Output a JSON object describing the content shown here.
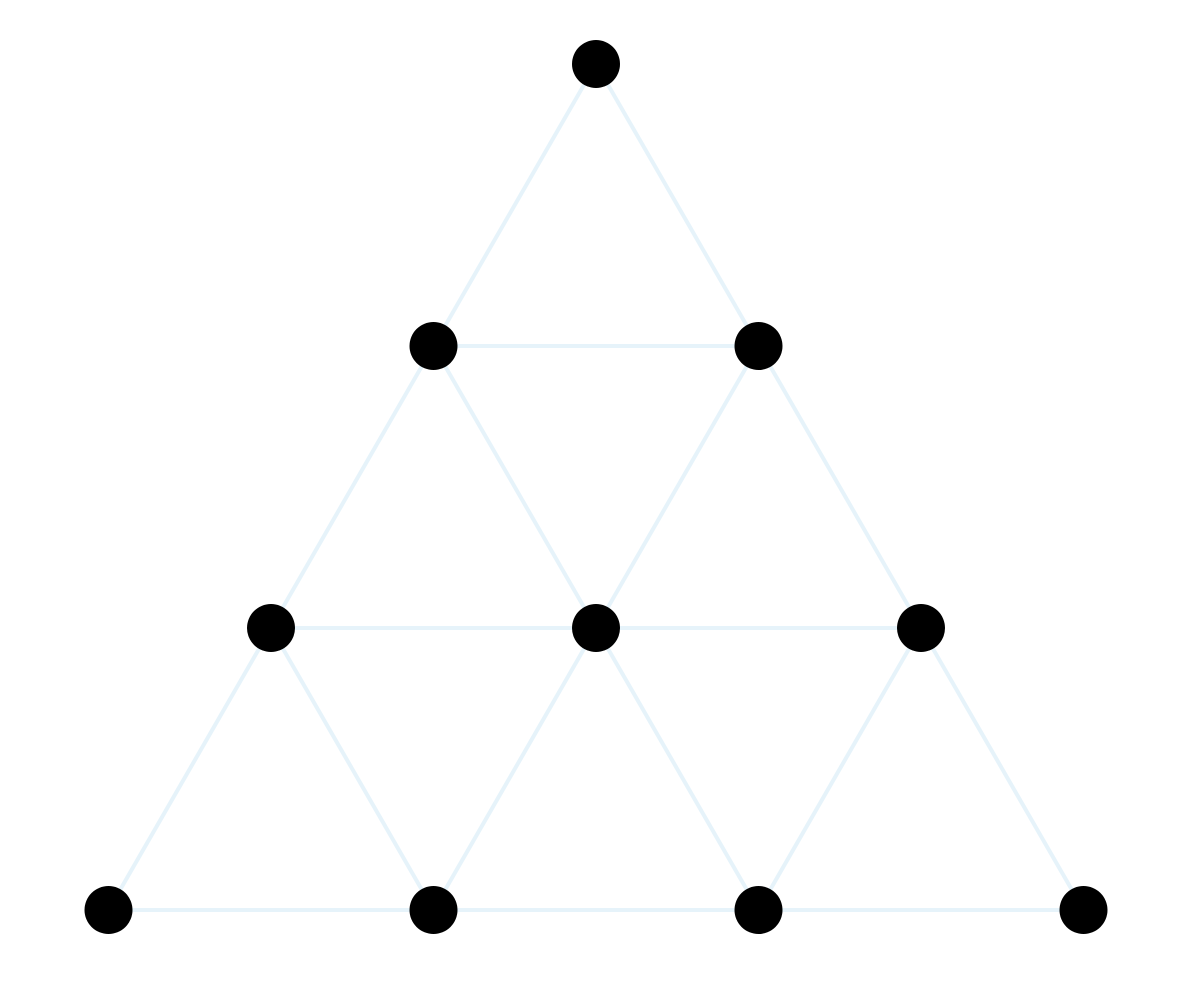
{
  "diagram": {
    "type": "triangular-grid-graph",
    "rows": 4,
    "node_count": 10,
    "edge_count": 18,
    "colors": {
      "background": "#ffffff",
      "node": "#000000",
      "edge": "#e6f3fa"
    },
    "nodes": [
      {
        "id": "r0c0",
        "row": 0,
        "col": 0
      },
      {
        "id": "r1c0",
        "row": 1,
        "col": 0
      },
      {
        "id": "r1c1",
        "row": 1,
        "col": 1
      },
      {
        "id": "r2c0",
        "row": 2,
        "col": 0
      },
      {
        "id": "r2c1",
        "row": 2,
        "col": 1
      },
      {
        "id": "r2c2",
        "row": 2,
        "col": 2
      },
      {
        "id": "r3c0",
        "row": 3,
        "col": 0
      },
      {
        "id": "r3c1",
        "row": 3,
        "col": 1
      },
      {
        "id": "r3c2",
        "row": 3,
        "col": 2
      },
      {
        "id": "r3c3",
        "row": 3,
        "col": 3
      }
    ],
    "edges": [
      [
        "r0c0",
        "r1c0"
      ],
      [
        "r0c0",
        "r1c1"
      ],
      [
        "r1c0",
        "r1c1"
      ],
      [
        "r1c0",
        "r2c0"
      ],
      [
        "r1c0",
        "r2c1"
      ],
      [
        "r1c1",
        "r2c1"
      ],
      [
        "r1c1",
        "r2c2"
      ],
      [
        "r2c0",
        "r2c1"
      ],
      [
        "r2c1",
        "r2c2"
      ],
      [
        "r2c0",
        "r3c0"
      ],
      [
        "r2c0",
        "r3c1"
      ],
      [
        "r2c1",
        "r3c1"
      ],
      [
        "r2c1",
        "r3c2"
      ],
      [
        "r2c2",
        "r3c2"
      ],
      [
        "r2c2",
        "r3c3"
      ],
      [
        "r3c0",
        "r3c1"
      ],
      [
        "r3c1",
        "r3c2"
      ],
      [
        "r3c2",
        "r3c3"
      ]
    ]
  }
}
